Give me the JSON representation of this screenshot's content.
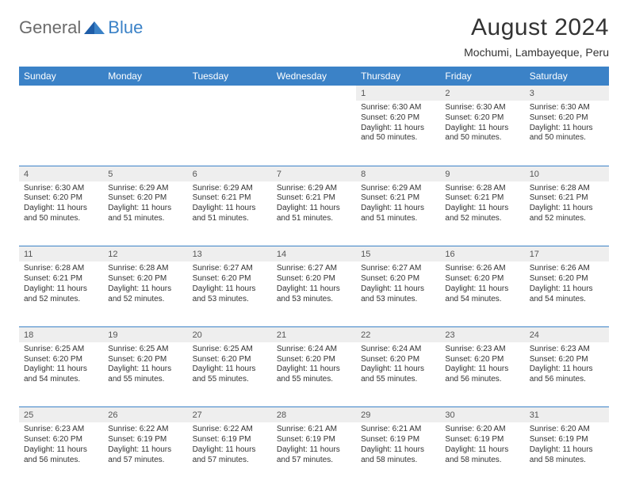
{
  "logo": {
    "general": "General",
    "blue": "Blue"
  },
  "title": "August 2024",
  "subtitle": "Mochumi, Lambayeque, Peru",
  "colors": {
    "header_bg": "#3b82c7",
    "header_text": "#ffffff",
    "daynum_bg": "#eeeeee",
    "border": "#3b82c7",
    "title_color": "#333333",
    "logo_gray": "#6b6b6b",
    "logo_blue": "#3b82c7",
    "background": "#ffffff"
  },
  "weekdays": [
    "Sunday",
    "Monday",
    "Tuesday",
    "Wednesday",
    "Thursday",
    "Friday",
    "Saturday"
  ],
  "weeks": [
    {
      "nums": [
        "",
        "",
        "",
        "",
        "1",
        "2",
        "3"
      ],
      "cells": [
        "",
        "",
        "",
        "",
        "Sunrise: 6:30 AM\nSunset: 6:20 PM\nDaylight: 11 hours and 50 minutes.",
        "Sunrise: 6:30 AM\nSunset: 6:20 PM\nDaylight: 11 hours and 50 minutes.",
        "Sunrise: 6:30 AM\nSunset: 6:20 PM\nDaylight: 11 hours and 50 minutes."
      ]
    },
    {
      "nums": [
        "4",
        "5",
        "6",
        "7",
        "8",
        "9",
        "10"
      ],
      "cells": [
        "Sunrise: 6:30 AM\nSunset: 6:20 PM\nDaylight: 11 hours and 50 minutes.",
        "Sunrise: 6:29 AM\nSunset: 6:20 PM\nDaylight: 11 hours and 51 minutes.",
        "Sunrise: 6:29 AM\nSunset: 6:21 PM\nDaylight: 11 hours and 51 minutes.",
        "Sunrise: 6:29 AM\nSunset: 6:21 PM\nDaylight: 11 hours and 51 minutes.",
        "Sunrise: 6:29 AM\nSunset: 6:21 PM\nDaylight: 11 hours and 51 minutes.",
        "Sunrise: 6:28 AM\nSunset: 6:21 PM\nDaylight: 11 hours and 52 minutes.",
        "Sunrise: 6:28 AM\nSunset: 6:21 PM\nDaylight: 11 hours and 52 minutes."
      ]
    },
    {
      "nums": [
        "11",
        "12",
        "13",
        "14",
        "15",
        "16",
        "17"
      ],
      "cells": [
        "Sunrise: 6:28 AM\nSunset: 6:21 PM\nDaylight: 11 hours and 52 minutes.",
        "Sunrise: 6:28 AM\nSunset: 6:20 PM\nDaylight: 11 hours and 52 minutes.",
        "Sunrise: 6:27 AM\nSunset: 6:20 PM\nDaylight: 11 hours and 53 minutes.",
        "Sunrise: 6:27 AM\nSunset: 6:20 PM\nDaylight: 11 hours and 53 minutes.",
        "Sunrise: 6:27 AM\nSunset: 6:20 PM\nDaylight: 11 hours and 53 minutes.",
        "Sunrise: 6:26 AM\nSunset: 6:20 PM\nDaylight: 11 hours and 54 minutes.",
        "Sunrise: 6:26 AM\nSunset: 6:20 PM\nDaylight: 11 hours and 54 minutes."
      ]
    },
    {
      "nums": [
        "18",
        "19",
        "20",
        "21",
        "22",
        "23",
        "24"
      ],
      "cells": [
        "Sunrise: 6:25 AM\nSunset: 6:20 PM\nDaylight: 11 hours and 54 minutes.",
        "Sunrise: 6:25 AM\nSunset: 6:20 PM\nDaylight: 11 hours and 55 minutes.",
        "Sunrise: 6:25 AM\nSunset: 6:20 PM\nDaylight: 11 hours and 55 minutes.",
        "Sunrise: 6:24 AM\nSunset: 6:20 PM\nDaylight: 11 hours and 55 minutes.",
        "Sunrise: 6:24 AM\nSunset: 6:20 PM\nDaylight: 11 hours and 55 minutes.",
        "Sunrise: 6:23 AM\nSunset: 6:20 PM\nDaylight: 11 hours and 56 minutes.",
        "Sunrise: 6:23 AM\nSunset: 6:20 PM\nDaylight: 11 hours and 56 minutes."
      ]
    },
    {
      "nums": [
        "25",
        "26",
        "27",
        "28",
        "29",
        "30",
        "31"
      ],
      "cells": [
        "Sunrise: 6:23 AM\nSunset: 6:20 PM\nDaylight: 11 hours and 56 minutes.",
        "Sunrise: 6:22 AM\nSunset: 6:19 PM\nDaylight: 11 hours and 57 minutes.",
        "Sunrise: 6:22 AM\nSunset: 6:19 PM\nDaylight: 11 hours and 57 minutes.",
        "Sunrise: 6:21 AM\nSunset: 6:19 PM\nDaylight: 11 hours and 57 minutes.",
        "Sunrise: 6:21 AM\nSunset: 6:19 PM\nDaylight: 11 hours and 58 minutes.",
        "Sunrise: 6:20 AM\nSunset: 6:19 PM\nDaylight: 11 hours and 58 minutes.",
        "Sunrise: 6:20 AM\nSunset: 6:19 PM\nDaylight: 11 hours and 58 minutes."
      ]
    }
  ]
}
